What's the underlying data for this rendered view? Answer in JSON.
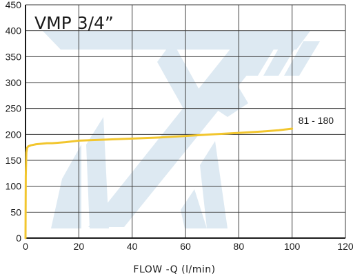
{
  "chart_data": {
    "type": "line",
    "title": "VMP 3/4”",
    "xlabel": "FLOW -Q  (l/min)",
    "ylabel": "",
    "xlim": [
      0,
      120
    ],
    "ylim": [
      0,
      450
    ],
    "x_ticks": [
      "0",
      "20",
      "40",
      "60",
      "80",
      "100",
      "120"
    ],
    "y_ticks": [
      "0",
      "50",
      "100",
      "150",
      "200",
      "250",
      "300",
      "350",
      "400",
      "450"
    ],
    "grid": true,
    "background_watermark": "brand logo",
    "series": [
      {
        "name": "81 - 180",
        "color": "#f2c62e",
        "x": [
          0,
          0.1,
          0.3,
          0.6,
          1,
          2,
          4,
          6,
          8,
          10,
          15,
          20,
          30,
          40,
          50,
          60,
          70,
          80,
          90,
          95,
          100
        ],
        "y": [
          0,
          120,
          165,
          174,
          177,
          179,
          181,
          182,
          183,
          183,
          185,
          188,
          190,
          192,
          194,
          197,
          200,
          203,
          206,
          208,
          211
        ]
      }
    ]
  }
}
